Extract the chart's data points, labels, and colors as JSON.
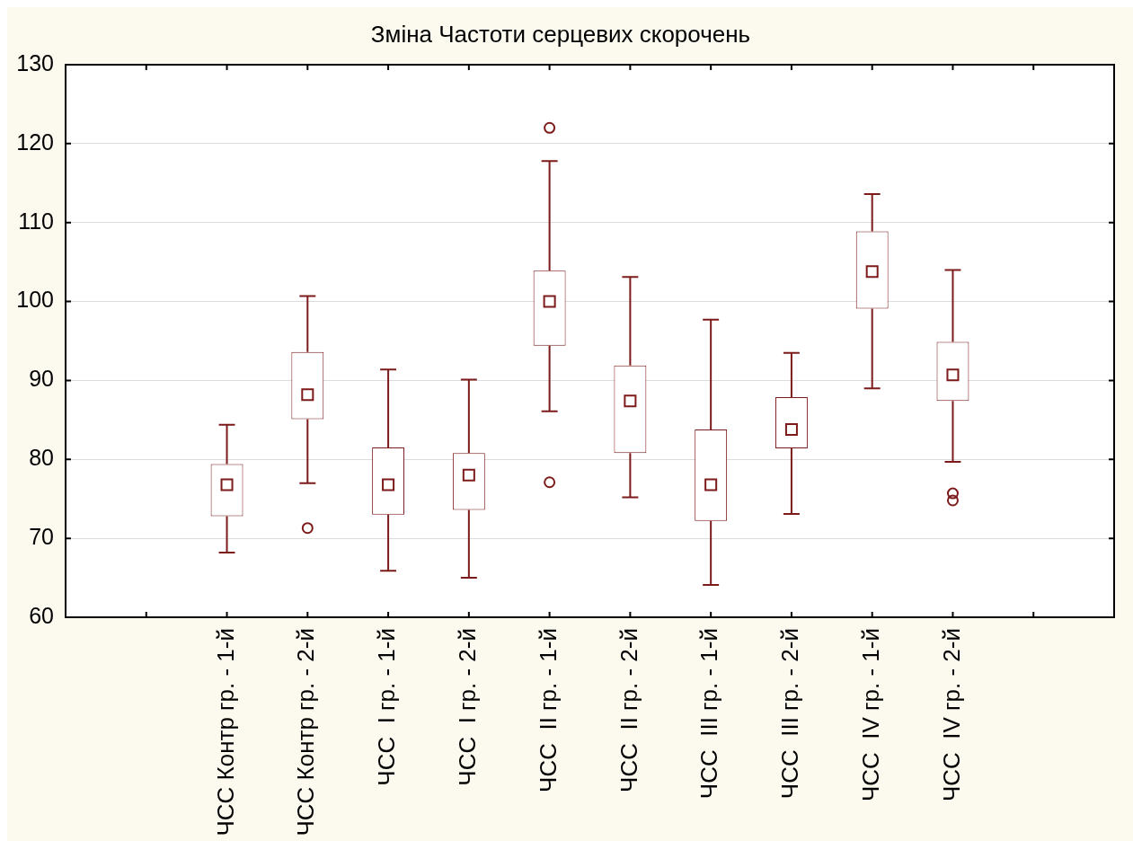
{
  "chart_data": {
    "type": "box",
    "title": "Зміна Частоти серцевих скорочень",
    "categories": [
      null,
      "ЧСС Контр гр. - 1-й",
      "ЧСС Контр гр. - 2-й",
      "ЧСС  I гр. - 1-й",
      "ЧСС  I гр. - 2-й",
      "ЧСС  II гр. - 1-й",
      "ЧСС  II гр. - 2-й",
      "ЧСС  III гр. - 1-й",
      "ЧСС  III гр. - 2-й",
      "ЧСС  IV гр. - 1-й",
      "ЧСС  IV гр. - 2-й",
      null
    ],
    "boxes": [
      null,
      {
        "low": 68.2,
        "q1": 72.8,
        "median": 76.8,
        "q3": 79.4,
        "high": 84.4
      },
      {
        "low": 77.0,
        "q1": 85.1,
        "median": 88.2,
        "q3": 93.6,
        "high": 100.7,
        "outliers": [
          71.3
        ]
      },
      {
        "low": 65.9,
        "q1": 73.0,
        "median": 76.8,
        "q3": 81.5,
        "high": 91.4
      },
      {
        "low": 65.0,
        "q1": 73.6,
        "median": 78.0,
        "q3": 80.8,
        "high": 90.1
      },
      {
        "low": 86.1,
        "q1": 94.4,
        "median": 100.0,
        "q3": 103.9,
        "high": 117.8,
        "outliers": [
          122.0,
          77.1
        ]
      },
      {
        "low": 75.2,
        "q1": 80.8,
        "median": 87.4,
        "q3": 91.9,
        "high": 103.1
      },
      {
        "low": 64.1,
        "q1": 72.2,
        "median": 76.8,
        "q3": 83.8,
        "high": 97.7
      },
      {
        "low": 73.1,
        "q1": 81.4,
        "median": 83.8,
        "q3": 87.9,
        "high": 93.5
      },
      {
        "low": 89.0,
        "q1": 99.1,
        "median": 103.8,
        "q3": 108.9,
        "high": 113.6
      },
      {
        "low": 79.7,
        "q1": 87.4,
        "median": 90.7,
        "q3": 94.9,
        "high": 104.0,
        "outliers": [
          75.7,
          74.8
        ]
      },
      null
    ],
    "color": "#7d1b1b",
    "marker": "square",
    "ylim": [
      60,
      130
    ],
    "yticks": [
      60,
      70,
      80,
      90,
      100,
      110,
      120,
      130
    ],
    "grid": "y"
  }
}
